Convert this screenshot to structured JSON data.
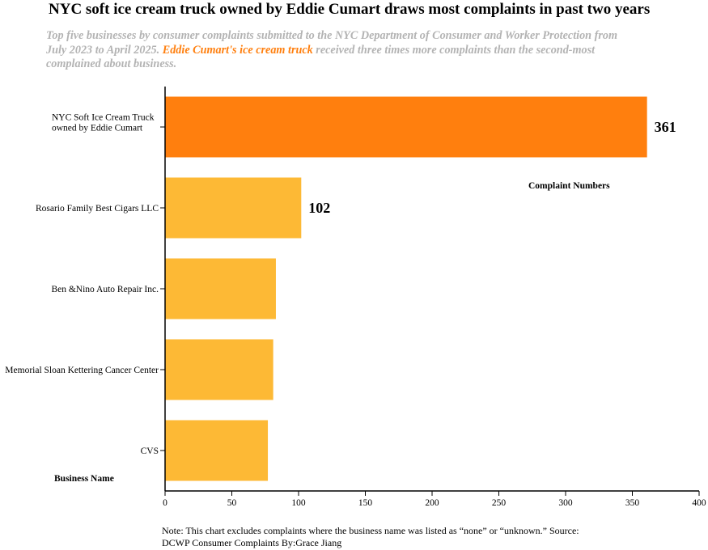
{
  "header": {
    "title": "NYC soft ice cream truck owned by Eddie Cumart draws most complaints in past two years",
    "subtitle_pre": "Top five businesses by consumer complaints submitted to the NYC Department of Consumer and Worker Protection from July 2023 to April 2025. ",
    "subtitle_highlight": "Eddie Cumart's ice cream truck",
    "subtitle_post": " received three times more complaints than the second-most complained about business."
  },
  "note": "Note: This chart excludes complaints where the business name was listed as “none” or “unknown.” Source: DCWP Consumer Complaints By:Grace Jiang",
  "colors": {
    "highlight": "#ff7f0e",
    "default": "#fdb935",
    "subtitle": "#b3b3b3"
  },
  "chart_data": {
    "type": "bar",
    "orientation": "horizontal",
    "categories": [
      "NYC Soft Ice Cream Truck\nowned by Eddie Cumart",
      "Rosario Family Best Cigars LLC",
      "Ben &Nino Auto Repair Inc.",
      "Memorial Sloan Kettering Cancer Center",
      "CVS"
    ],
    "values": [
      361,
      102,
      83,
      81,
      77
    ],
    "data_labels": [
      "361",
      "102",
      null,
      null,
      null
    ],
    "highlight_index": 0,
    "xlabel": "Complaint Numbers",
    "ylabel": "Business Name",
    "xlim": [
      0,
      400
    ],
    "xticks": [
      0,
      50,
      100,
      150,
      200,
      250,
      300,
      350,
      400
    ],
    "grid": false
  }
}
